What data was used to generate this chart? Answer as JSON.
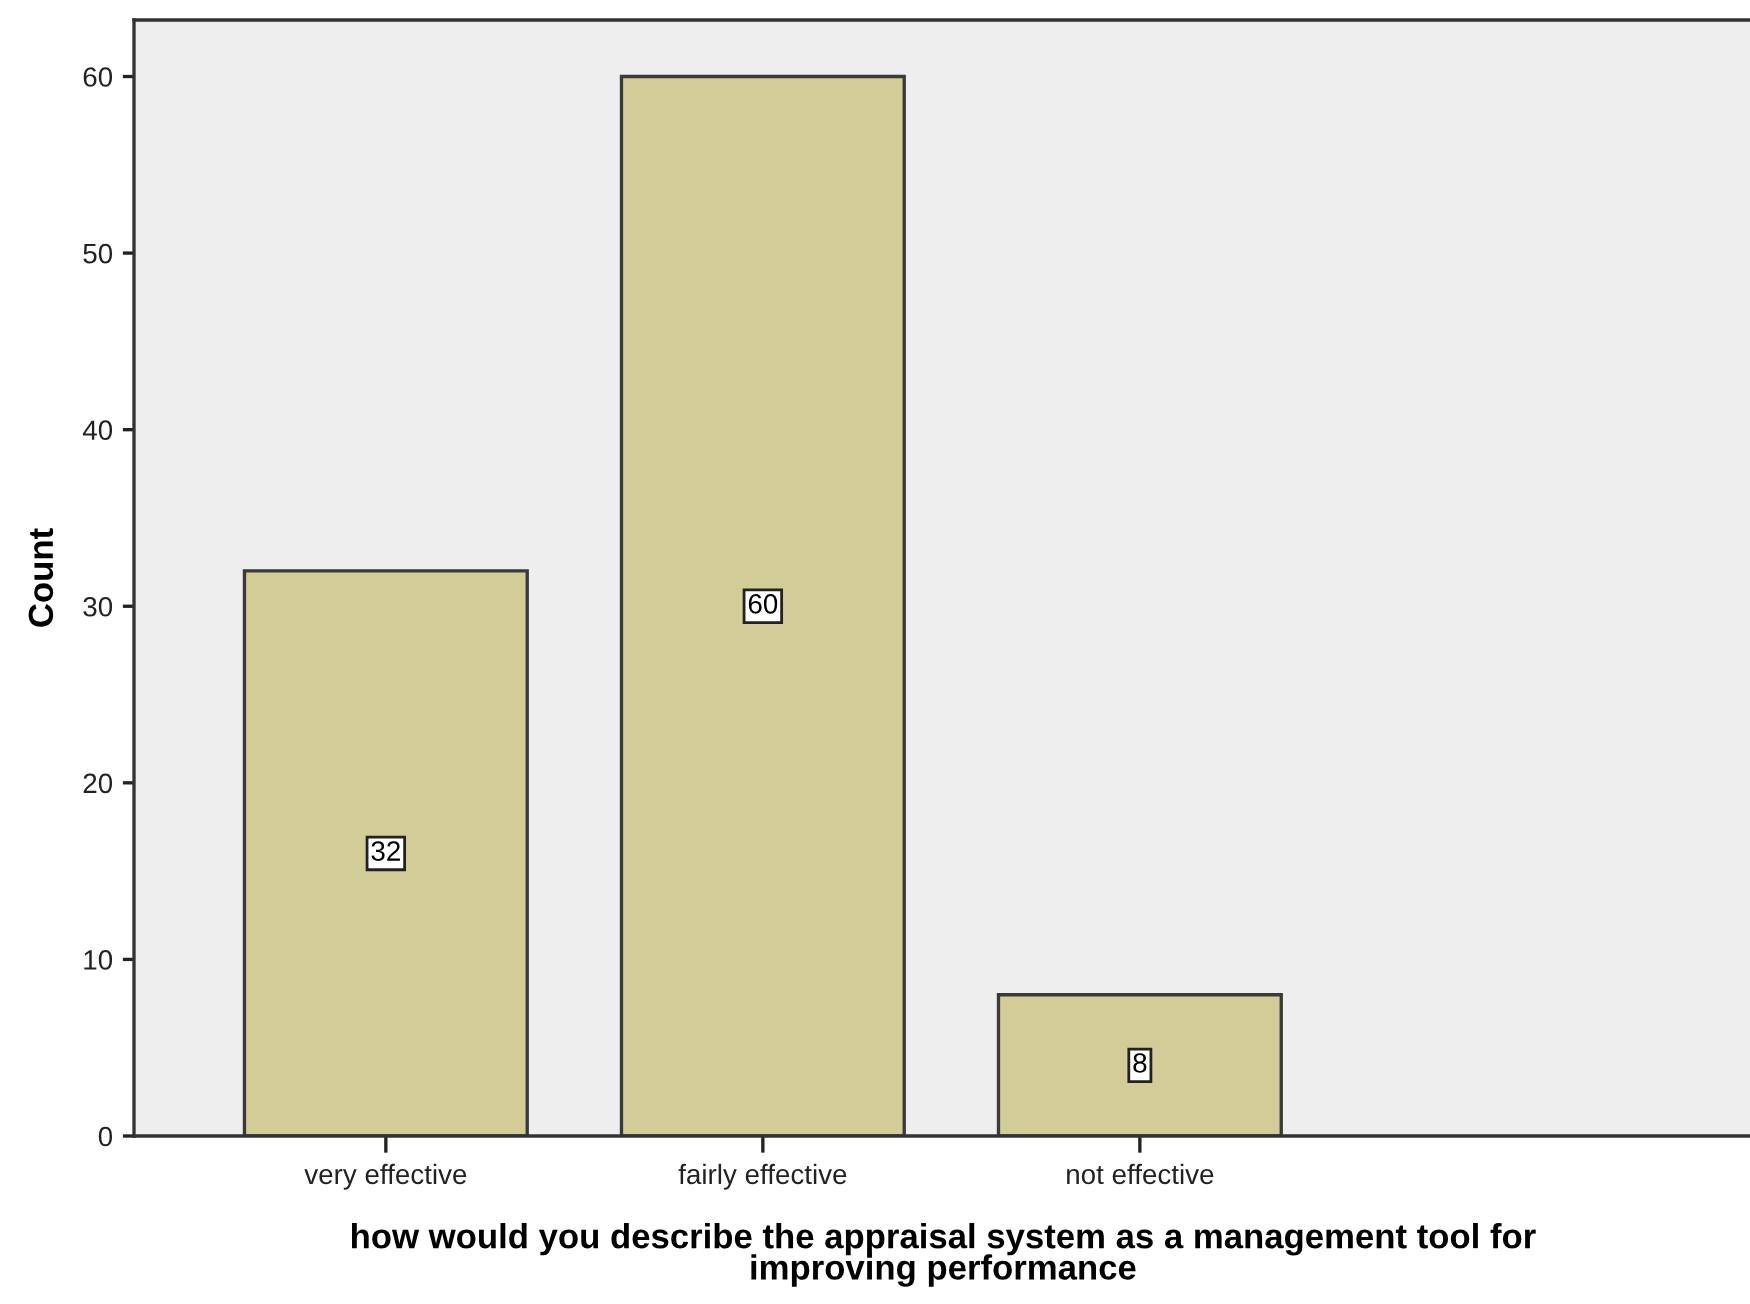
{
  "chart_data": {
    "type": "bar",
    "xlabel": "how would you describe the appraisal system as a management tool for\nimproving performance",
    "ylabel": "Count",
    "categories": [
      "very effective",
      "fairly effective",
      "not effective"
    ],
    "values": [
      32,
      60,
      8
    ],
    "color": "#d2cd96",
    "ylim": [
      0,
      63.2
    ],
    "yticks": [
      0,
      10,
      20,
      30,
      40,
      50,
      60
    ],
    "data_labels": true,
    "grid": false,
    "legend": false
  }
}
